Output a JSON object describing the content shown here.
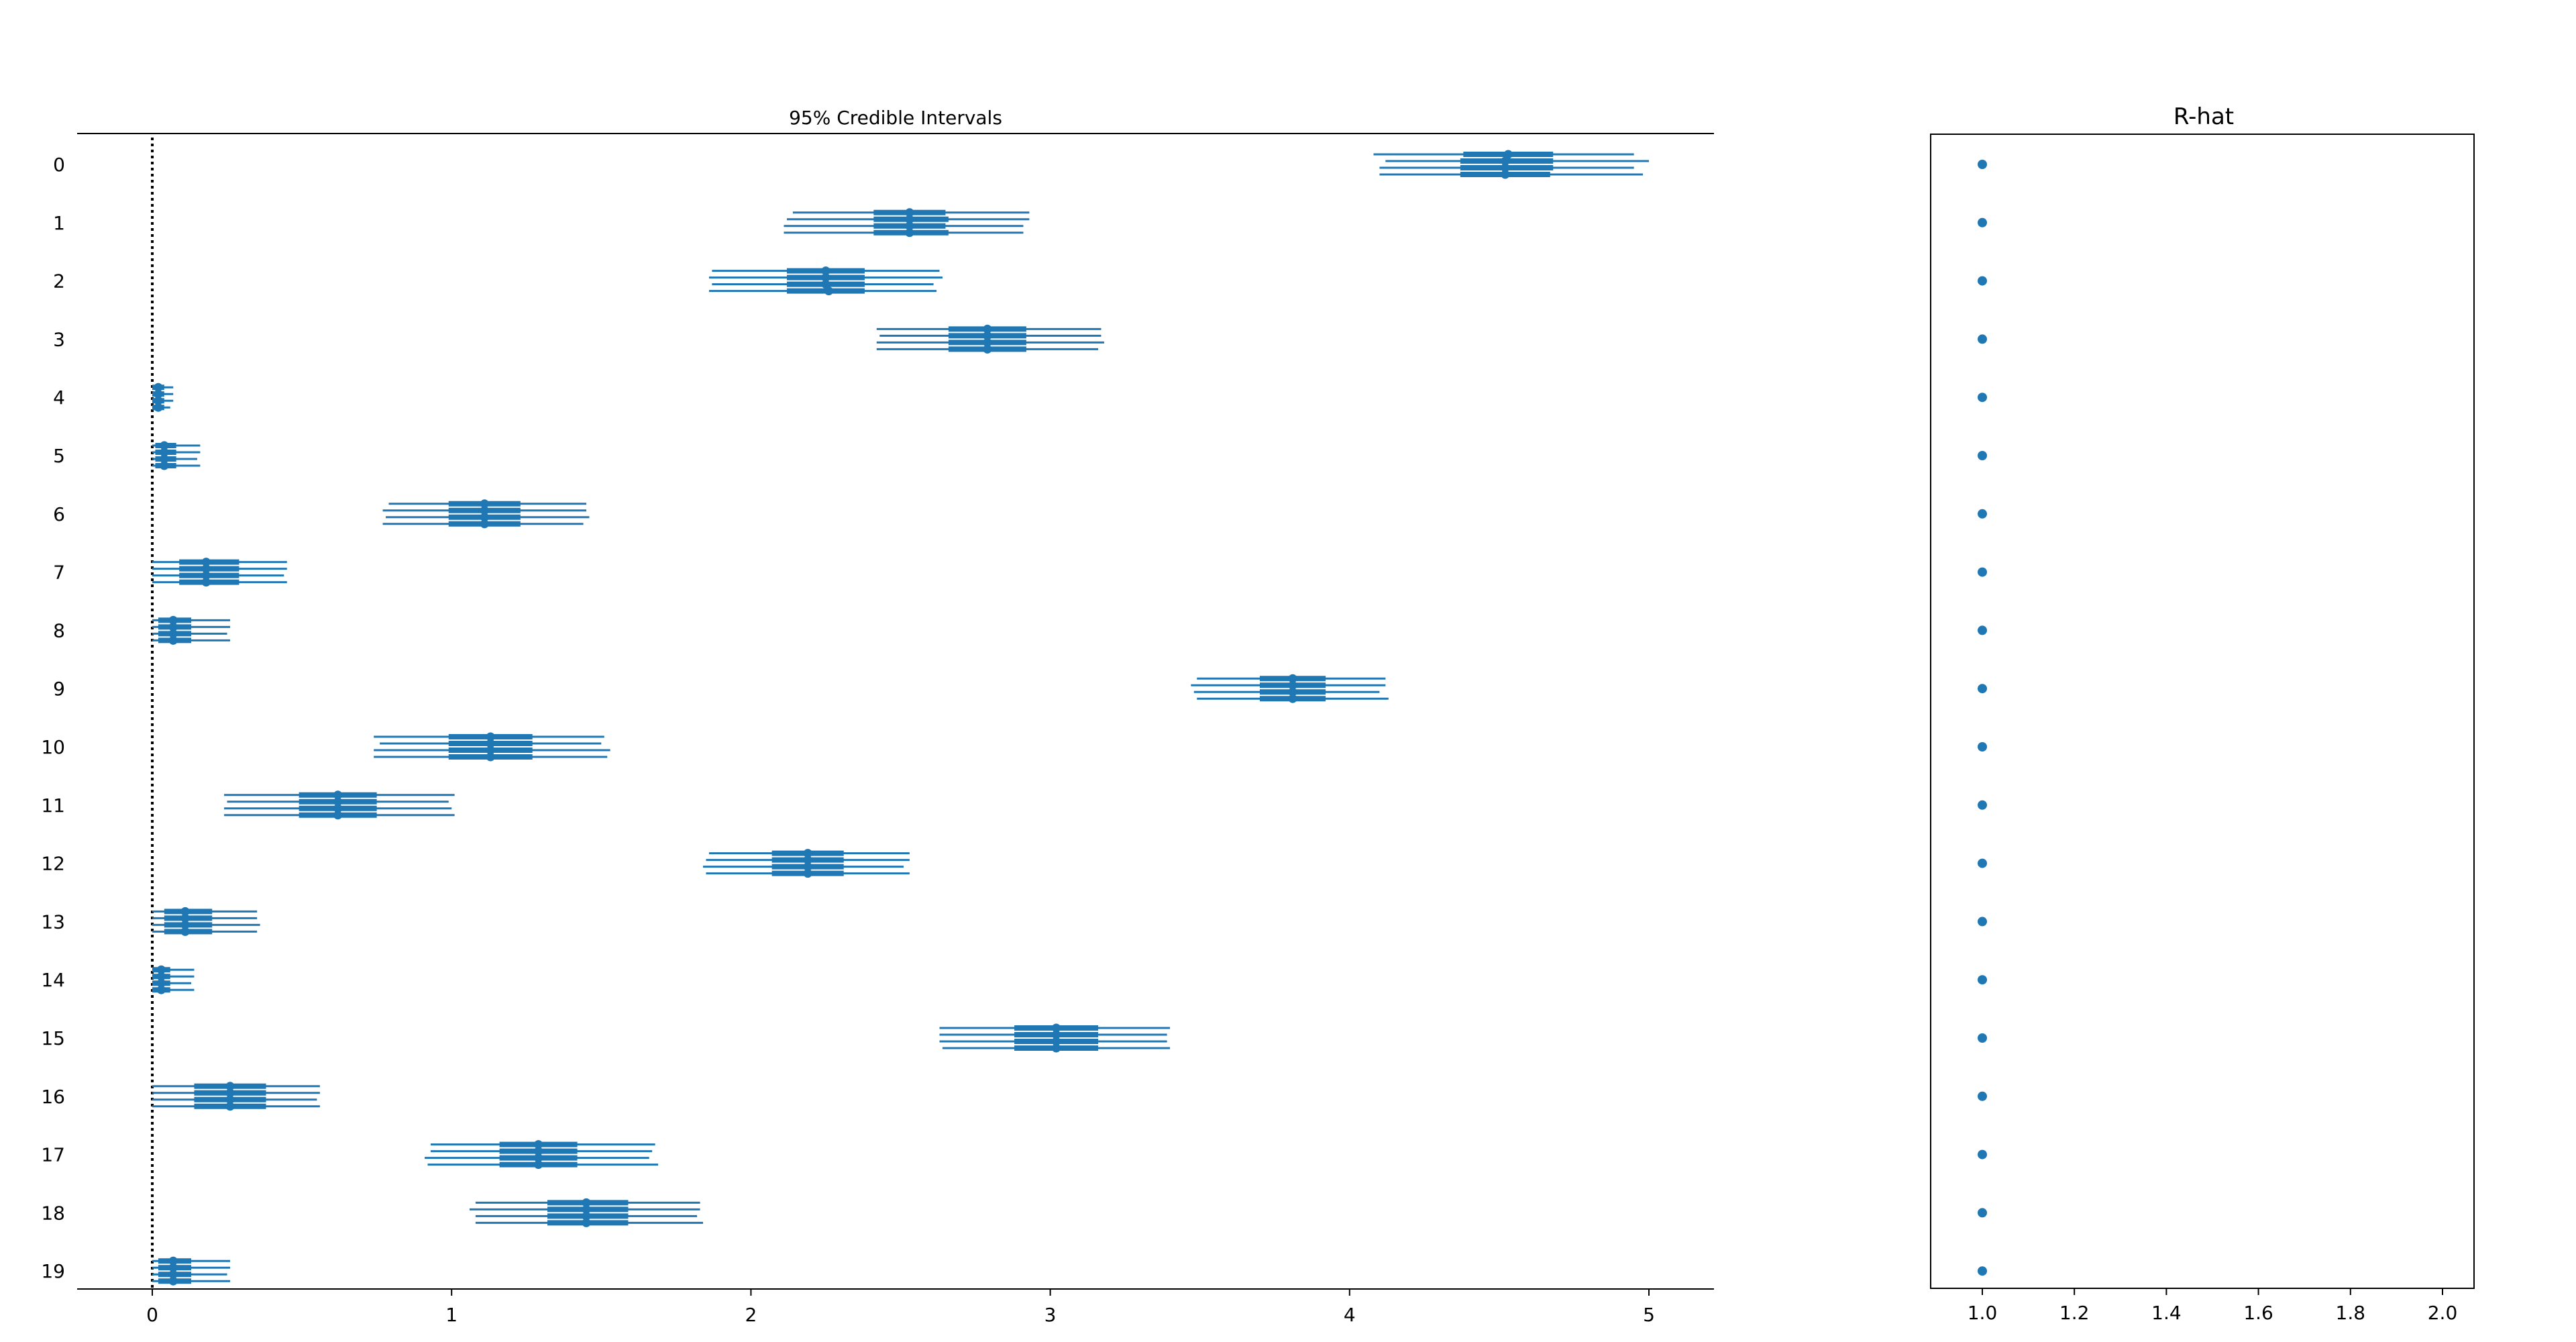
{
  "colors": {
    "series": "#1f77b4",
    "axis": "#000000",
    "background": "#ffffff"
  },
  "chart_data": [
    {
      "type": "forest",
      "title": "95% Credible Intervals",
      "xlabel": "",
      "ylabel": "",
      "xlim": [
        -0.25,
        5.25
      ],
      "xticks": [
        0,
        1,
        2,
        3,
        4,
        5
      ],
      "xtick_labels": [
        "0",
        "1",
        "2",
        "3",
        "4",
        "5"
      ],
      "reference_line": {
        "x": 0,
        "style": "dotted"
      },
      "grid": false,
      "chains": 4,
      "parameters": [
        "0",
        "1",
        "2",
        "3",
        "4",
        "5",
        "6",
        "7",
        "8",
        "9",
        "10",
        "11",
        "12",
        "13",
        "14",
        "15",
        "16",
        "17",
        "18",
        "19"
      ],
      "chain_estimates": [
        [
          {
            "mean": 4.53,
            "hdi50": [
              4.38,
              4.68
            ],
            "hdi95": [
              4.08,
              4.95
            ]
          },
          {
            "mean": 4.52,
            "hdi50": [
              4.37,
              4.68
            ],
            "hdi95": [
              4.12,
              5.0
            ]
          },
          {
            "mean": 4.52,
            "hdi50": [
              4.37,
              4.68
            ],
            "hdi95": [
              4.1,
              4.95
            ]
          },
          {
            "mean": 4.52,
            "hdi50": [
              4.37,
              4.67
            ],
            "hdi95": [
              4.1,
              4.98
            ]
          }
        ],
        [
          {
            "mean": 2.53,
            "hdi50": [
              2.41,
              2.65
            ],
            "hdi95": [
              2.14,
              2.93
            ]
          },
          {
            "mean": 2.53,
            "hdi50": [
              2.41,
              2.66
            ],
            "hdi95": [
              2.12,
              2.93
            ]
          },
          {
            "mean": 2.53,
            "hdi50": [
              2.41,
              2.65
            ],
            "hdi95": [
              2.11,
              2.91
            ]
          },
          {
            "mean": 2.53,
            "hdi50": [
              2.41,
              2.66
            ],
            "hdi95": [
              2.11,
              2.91
            ]
          }
        ],
        [
          {
            "mean": 2.25,
            "hdi50": [
              2.12,
              2.38
            ],
            "hdi95": [
              1.87,
              2.63
            ]
          },
          {
            "mean": 2.25,
            "hdi50": [
              2.12,
              2.38
            ],
            "hdi95": [
              1.86,
              2.64
            ]
          },
          {
            "mean": 2.25,
            "hdi50": [
              2.12,
              2.38
            ],
            "hdi95": [
              1.87,
              2.61
            ]
          },
          {
            "mean": 2.26,
            "hdi50": [
              2.12,
              2.38
            ],
            "hdi95": [
              1.86,
              2.62
            ]
          }
        ],
        [
          {
            "mean": 2.79,
            "hdi50": [
              2.66,
              2.92
            ],
            "hdi95": [
              2.42,
              3.17
            ]
          },
          {
            "mean": 2.79,
            "hdi50": [
              2.66,
              2.92
            ],
            "hdi95": [
              2.43,
              3.17
            ]
          },
          {
            "mean": 2.79,
            "hdi50": [
              2.66,
              2.92
            ],
            "hdi95": [
              2.42,
              3.18
            ]
          },
          {
            "mean": 2.79,
            "hdi50": [
              2.66,
              2.92
            ],
            "hdi95": [
              2.42,
              3.16
            ]
          }
        ],
        [
          {
            "mean": 0.02,
            "hdi50": [
              0.0,
              0.04
            ],
            "hdi95": [
              0.0,
              0.07
            ]
          },
          {
            "mean": 0.02,
            "hdi50": [
              0.0,
              0.04
            ],
            "hdi95": [
              0.0,
              0.07
            ]
          },
          {
            "mean": 0.02,
            "hdi50": [
              0.0,
              0.04
            ],
            "hdi95": [
              0.0,
              0.07
            ]
          },
          {
            "mean": 0.02,
            "hdi50": [
              0.0,
              0.04
            ],
            "hdi95": [
              0.0,
              0.06
            ]
          }
        ],
        [
          {
            "mean": 0.04,
            "hdi50": [
              0.01,
              0.08
            ],
            "hdi95": [
              0.0,
              0.16
            ]
          },
          {
            "mean": 0.04,
            "hdi50": [
              0.01,
              0.08
            ],
            "hdi95": [
              0.0,
              0.16
            ]
          },
          {
            "mean": 0.04,
            "hdi50": [
              0.01,
              0.08
            ],
            "hdi95": [
              0.0,
              0.15
            ]
          },
          {
            "mean": 0.04,
            "hdi50": [
              0.01,
              0.08
            ],
            "hdi95": [
              0.0,
              0.16
            ]
          }
        ],
        [
          {
            "mean": 1.11,
            "hdi50": [
              0.99,
              1.23
            ],
            "hdi95": [
              0.79,
              1.45
            ]
          },
          {
            "mean": 1.11,
            "hdi50": [
              0.99,
              1.23
            ],
            "hdi95": [
              0.77,
              1.45
            ]
          },
          {
            "mean": 1.11,
            "hdi50": [
              0.99,
              1.23
            ],
            "hdi95": [
              0.78,
              1.46
            ]
          },
          {
            "mean": 1.11,
            "hdi50": [
              0.99,
              1.23
            ],
            "hdi95": [
              0.77,
              1.44
            ]
          }
        ],
        [
          {
            "mean": 0.18,
            "hdi50": [
              0.09,
              0.29
            ],
            "hdi95": [
              0.0,
              0.45
            ]
          },
          {
            "mean": 0.18,
            "hdi50": [
              0.09,
              0.29
            ],
            "hdi95": [
              0.0,
              0.45
            ]
          },
          {
            "mean": 0.18,
            "hdi50": [
              0.09,
              0.29
            ],
            "hdi95": [
              0.0,
              0.44
            ]
          },
          {
            "mean": 0.18,
            "hdi50": [
              0.09,
              0.29
            ],
            "hdi95": [
              0.0,
              0.45
            ]
          }
        ],
        [
          {
            "mean": 0.07,
            "hdi50": [
              0.02,
              0.13
            ],
            "hdi95": [
              0.0,
              0.26
            ]
          },
          {
            "mean": 0.07,
            "hdi50": [
              0.02,
              0.13
            ],
            "hdi95": [
              0.0,
              0.26
            ]
          },
          {
            "mean": 0.07,
            "hdi50": [
              0.02,
              0.13
            ],
            "hdi95": [
              0.0,
              0.25
            ]
          },
          {
            "mean": 0.07,
            "hdi50": [
              0.02,
              0.13
            ],
            "hdi95": [
              0.0,
              0.26
            ]
          }
        ],
        [
          {
            "mean": 3.81,
            "hdi50": [
              3.7,
              3.92
            ],
            "hdi95": [
              3.49,
              4.12
            ]
          },
          {
            "mean": 3.81,
            "hdi50": [
              3.7,
              3.92
            ],
            "hdi95": [
              3.47,
              4.12
            ]
          },
          {
            "mean": 3.81,
            "hdi50": [
              3.7,
              3.92
            ],
            "hdi95": [
              3.48,
              4.1
            ]
          },
          {
            "mean": 3.81,
            "hdi50": [
              3.7,
              3.92
            ],
            "hdi95": [
              3.49,
              4.13
            ]
          }
        ],
        [
          {
            "mean": 1.13,
            "hdi50": [
              0.99,
              1.27
            ],
            "hdi95": [
              0.74,
              1.51
            ]
          },
          {
            "mean": 1.13,
            "hdi50": [
              0.99,
              1.27
            ],
            "hdi95": [
              0.76,
              1.5
            ]
          },
          {
            "mean": 1.13,
            "hdi50": [
              0.99,
              1.27
            ],
            "hdi95": [
              0.74,
              1.53
            ]
          },
          {
            "mean": 1.13,
            "hdi50": [
              0.99,
              1.27
            ],
            "hdi95": [
              0.74,
              1.52
            ]
          }
        ],
        [
          {
            "mean": 0.62,
            "hdi50": [
              0.49,
              0.75
            ],
            "hdi95": [
              0.24,
              1.01
            ]
          },
          {
            "mean": 0.62,
            "hdi50": [
              0.49,
              0.75
            ],
            "hdi95": [
              0.25,
              0.99
            ]
          },
          {
            "mean": 0.62,
            "hdi50": [
              0.49,
              0.75
            ],
            "hdi95": [
              0.24,
              1.0
            ]
          },
          {
            "mean": 0.62,
            "hdi50": [
              0.49,
              0.75
            ],
            "hdi95": [
              0.24,
              1.01
            ]
          }
        ],
        [
          {
            "mean": 2.19,
            "hdi50": [
              2.07,
              2.31
            ],
            "hdi95": [
              1.86,
              2.53
            ]
          },
          {
            "mean": 2.19,
            "hdi50": [
              2.07,
              2.31
            ],
            "hdi95": [
              1.85,
              2.53
            ]
          },
          {
            "mean": 2.19,
            "hdi50": [
              2.07,
              2.31
            ],
            "hdi95": [
              1.84,
              2.51
            ]
          },
          {
            "mean": 2.19,
            "hdi50": [
              2.07,
              2.31
            ],
            "hdi95": [
              1.85,
              2.53
            ]
          }
        ],
        [
          {
            "mean": 0.11,
            "hdi50": [
              0.04,
              0.2
            ],
            "hdi95": [
              0.0,
              0.35
            ]
          },
          {
            "mean": 0.11,
            "hdi50": [
              0.04,
              0.2
            ],
            "hdi95": [
              0.0,
              0.35
            ]
          },
          {
            "mean": 0.11,
            "hdi50": [
              0.04,
              0.2
            ],
            "hdi95": [
              0.0,
              0.36
            ]
          },
          {
            "mean": 0.11,
            "hdi50": [
              0.04,
              0.2
            ],
            "hdi95": [
              0.0,
              0.35
            ]
          }
        ],
        [
          {
            "mean": 0.03,
            "hdi50": [
              0.0,
              0.06
            ],
            "hdi95": [
              0.0,
              0.14
            ]
          },
          {
            "mean": 0.03,
            "hdi50": [
              0.0,
              0.06
            ],
            "hdi95": [
              0.0,
              0.14
            ]
          },
          {
            "mean": 0.03,
            "hdi50": [
              0.0,
              0.06
            ],
            "hdi95": [
              0.0,
              0.13
            ]
          },
          {
            "mean": 0.03,
            "hdi50": [
              0.0,
              0.06
            ],
            "hdi95": [
              0.0,
              0.14
            ]
          }
        ],
        [
          {
            "mean": 3.02,
            "hdi50": [
              2.88,
              3.16
            ],
            "hdi95": [
              2.63,
              3.4
            ]
          },
          {
            "mean": 3.02,
            "hdi50": [
              2.88,
              3.16
            ],
            "hdi95": [
              2.63,
              3.39
            ]
          },
          {
            "mean": 3.02,
            "hdi50": [
              2.88,
              3.16
            ],
            "hdi95": [
              2.63,
              3.39
            ]
          },
          {
            "mean": 3.02,
            "hdi50": [
              2.88,
              3.16
            ],
            "hdi95": [
              2.64,
              3.4
            ]
          }
        ],
        [
          {
            "mean": 0.26,
            "hdi50": [
              0.14,
              0.38
            ],
            "hdi95": [
              0.0,
              0.56
            ]
          },
          {
            "mean": 0.26,
            "hdi50": [
              0.14,
              0.38
            ],
            "hdi95": [
              0.0,
              0.56
            ]
          },
          {
            "mean": 0.26,
            "hdi50": [
              0.14,
              0.38
            ],
            "hdi95": [
              0.0,
              0.55
            ]
          },
          {
            "mean": 0.26,
            "hdi50": [
              0.14,
              0.38
            ],
            "hdi95": [
              0.0,
              0.56
            ]
          }
        ],
        [
          {
            "mean": 1.29,
            "hdi50": [
              1.16,
              1.42
            ],
            "hdi95": [
              0.93,
              1.68
            ]
          },
          {
            "mean": 1.29,
            "hdi50": [
              1.16,
              1.42
            ],
            "hdi95": [
              0.93,
              1.67
            ]
          },
          {
            "mean": 1.29,
            "hdi50": [
              1.16,
              1.42
            ],
            "hdi95": [
              0.91,
              1.66
            ]
          },
          {
            "mean": 1.29,
            "hdi50": [
              1.16,
              1.42
            ],
            "hdi95": [
              0.92,
              1.69
            ]
          }
        ],
        [
          {
            "mean": 1.45,
            "hdi50": [
              1.32,
              1.59
            ],
            "hdi95": [
              1.08,
              1.83
            ]
          },
          {
            "mean": 1.45,
            "hdi50": [
              1.32,
              1.59
            ],
            "hdi95": [
              1.06,
              1.83
            ]
          },
          {
            "mean": 1.45,
            "hdi50": [
              1.32,
              1.59
            ],
            "hdi95": [
              1.08,
              1.82
            ]
          },
          {
            "mean": 1.45,
            "hdi50": [
              1.32,
              1.59
            ],
            "hdi95": [
              1.08,
              1.84
            ]
          }
        ],
        [
          {
            "mean": 0.07,
            "hdi50": [
              0.02,
              0.13
            ],
            "hdi95": [
              0.0,
              0.26
            ]
          },
          {
            "mean": 0.07,
            "hdi50": [
              0.02,
              0.13
            ],
            "hdi95": [
              0.0,
              0.26
            ]
          },
          {
            "mean": 0.07,
            "hdi50": [
              0.02,
              0.13
            ],
            "hdi95": [
              0.0,
              0.25
            ]
          },
          {
            "mean": 0.07,
            "hdi50": [
              0.02,
              0.13
            ],
            "hdi95": [
              0.0,
              0.26
            ]
          }
        ]
      ]
    },
    {
      "type": "scatter",
      "title": "R-hat",
      "xlabel": "",
      "ylabel": "",
      "xlim": [
        0.9,
        2.1
      ],
      "xticks": [
        1.0,
        1.2,
        1.4,
        1.6,
        1.8,
        2.0
      ],
      "xtick_labels": [
        "1.0",
        "1.2",
        "1.4",
        "1.6",
        "1.8",
        "2.0"
      ],
      "grid": false,
      "parameters": [
        "0",
        "1",
        "2",
        "3",
        "4",
        "5",
        "6",
        "7",
        "8",
        "9",
        "10",
        "11",
        "12",
        "13",
        "14",
        "15",
        "16",
        "17",
        "18",
        "19"
      ],
      "values": [
        1.0,
        1.0,
        1.0,
        1.0,
        1.0,
        1.0,
        1.0,
        1.0,
        1.0,
        1.0,
        1.0,
        1.0,
        1.0,
        1.0,
        1.0,
        1.0,
        1.0,
        1.0,
        1.0,
        1.0
      ]
    }
  ]
}
